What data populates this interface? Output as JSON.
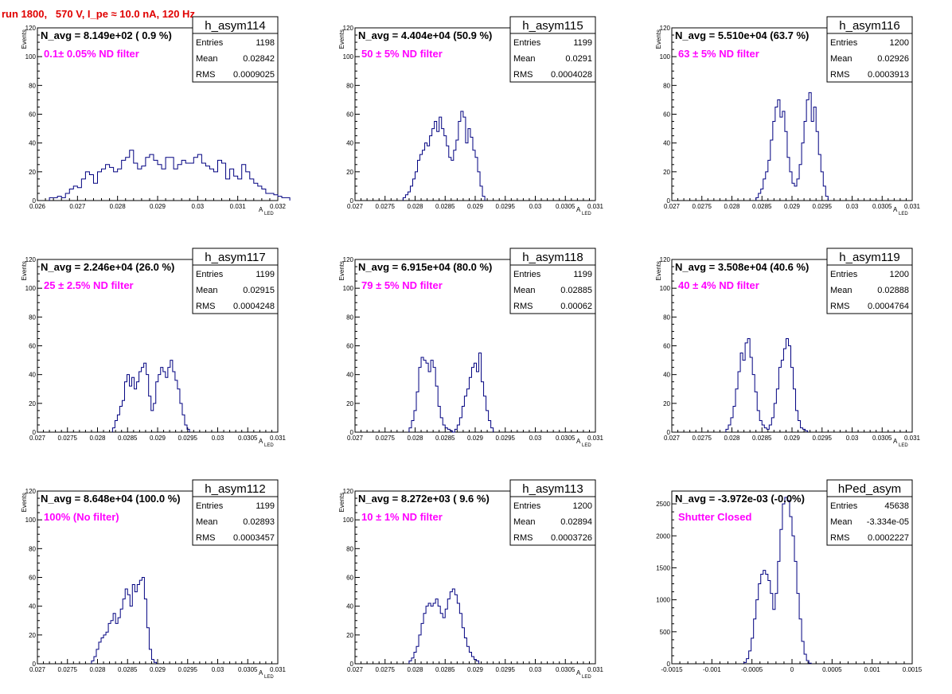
{
  "title": "run 1800,   570 V, I_pe ≈ 10.0 nA, 120 Hz",
  "colors": {
    "title": "#e00000",
    "annotation": "#ff00ff",
    "histogram": "#000080",
    "axis": "#000000"
  },
  "chart_data": [
    {
      "type": "histogram",
      "name": "h_asym114",
      "nlabel": "N_avg = 8.149e+02 ( 0.9 %)",
      "filter": "0.1± 0.05% ND filter",
      "stats": [
        [
          "Entries",
          "1198"
        ],
        [
          "Mean",
          "0.02842"
        ],
        [
          "RMS",
          "0.0009025"
        ]
      ],
      "xlabel": "A",
      "xlabel_sub": "LED",
      "ylabel": "Events",
      "xlim": [
        0.026,
        0.032
      ],
      "ylim": [
        0,
        120
      ],
      "xticks": [
        "0.026",
        "0.027",
        "0.028",
        "0.029",
        "0.03",
        "0.031",
        "0.032"
      ],
      "yticks": [
        "0",
        "20",
        "40",
        "60",
        "80",
        "100",
        "120"
      ],
      "bin_start": 0.0263,
      "bin_width": 0.0001,
      "values": [
        2,
        2,
        3,
        2,
        5,
        8,
        10,
        9,
        15,
        20,
        18,
        12,
        20,
        22,
        25,
        23,
        20,
        22,
        28,
        30,
        35,
        26,
        22,
        24,
        30,
        32,
        28,
        25,
        22,
        30,
        30,
        22,
        25,
        28,
        26,
        26,
        30,
        32,
        26,
        24,
        22,
        20,
        28,
        26,
        15,
        22,
        17,
        15,
        25,
        20,
        15,
        12,
        10,
        8,
        5,
        5,
        4,
        3,
        2,
        2
      ]
    },
    {
      "type": "histogram",
      "name": "h_asym115",
      "nlabel": "N_avg = 4.404e+04 (50.9 %)",
      "filter": "50 ± 5% ND filter",
      "stats": [
        [
          "Entries",
          "1199"
        ],
        [
          "Mean",
          "0.0291"
        ],
        [
          "RMS",
          "0.0004028"
        ]
      ],
      "xlabel": "A",
      "xlabel_sub": "LED",
      "ylabel": "Events",
      "xlim": [
        0.027,
        0.031
      ],
      "ylim": [
        0,
        120
      ],
      "xticks": [
        "0.027",
        "0.0275",
        "0.028",
        "0.0285",
        "0.029",
        "0.0295",
        "0.03",
        "0.0305",
        "0.031"
      ],
      "yticks": [
        "0",
        "20",
        "40",
        "60",
        "80",
        "100",
        "120"
      ],
      "bin_start": 0.0278,
      "bin_width": 4e-05,
      "values": [
        2,
        4,
        6,
        10,
        15,
        20,
        28,
        32,
        35,
        40,
        38,
        45,
        50,
        55,
        48,
        58,
        50,
        45,
        38,
        30,
        28,
        35,
        42,
        55,
        62,
        58,
        40,
        50,
        44,
        35,
        30,
        20,
        10,
        3
      ]
    },
    {
      "type": "histogram",
      "name": "h_asym116",
      "nlabel": "N_avg = 5.510e+04 (63.7 %)",
      "filter": "63 ± 5% ND filter",
      "stats": [
        [
          "Entries",
          "1200"
        ],
        [
          "Mean",
          "0.02926"
        ],
        [
          "RMS",
          "0.0003913"
        ]
      ],
      "xlabel": "A",
      "xlabel_sub": "LED",
      "ylabel": "Events",
      "xlim": [
        0.027,
        0.031
      ],
      "ylim": [
        0,
        120
      ],
      "xticks": [
        "0.027",
        "0.0275",
        "0.028",
        "0.0285",
        "0.029",
        "0.0295",
        "0.03",
        "0.0305",
        "0.031"
      ],
      "yticks": [
        "0",
        "20",
        "40",
        "60",
        "80",
        "100",
        "120"
      ],
      "bin_start": 0.0284,
      "bin_width": 4e-05,
      "values": [
        2,
        5,
        8,
        15,
        20,
        28,
        42,
        55,
        65,
        70,
        58,
        62,
        48,
        30,
        20,
        12,
        10,
        15,
        25,
        40,
        55,
        70,
        75,
        55,
        65,
        48,
        32,
        20,
        10,
        3
      ]
    },
    {
      "type": "histogram",
      "name": "h_asym117",
      "nlabel": "N_avg = 2.246e+04 (26.0 %)",
      "filter": "25 ± 2.5% ND filter",
      "stats": [
        [
          "Entries",
          "1199"
        ],
        [
          "Mean",
          "0.02915"
        ],
        [
          "RMS",
          "0.0004248"
        ]
      ],
      "xlabel": "A",
      "xlabel_sub": "LED",
      "ylabel": "Events",
      "xlim": [
        0.027,
        0.031
      ],
      "ylim": [
        0,
        120
      ],
      "xticks": [
        "0.027",
        "0.0275",
        "0.028",
        "0.0285",
        "0.029",
        "0.0295",
        "0.03",
        "0.0305",
        "0.031"
      ],
      "yticks": [
        "0",
        "20",
        "40",
        "60",
        "80",
        "100",
        "120"
      ],
      "bin_start": 0.02825,
      "bin_width": 4e-05,
      "values": [
        3,
        8,
        12,
        18,
        22,
        35,
        40,
        32,
        38,
        30,
        35,
        42,
        45,
        48,
        40,
        25,
        15,
        20,
        35,
        40,
        45,
        42,
        38,
        45,
        50,
        42,
        36,
        30,
        20,
        12,
        5,
        2
      ]
    },
    {
      "type": "histogram",
      "name": "h_asym118",
      "nlabel": "N_avg = 6.915e+04 (80.0 %)",
      "filter": "79 ± 5% ND filter",
      "stats": [
        [
          "Entries",
          "1199"
        ],
        [
          "Mean",
          "0.02885"
        ],
        [
          "RMS",
          "0.00062"
        ]
      ],
      "xlabel": "A",
      "xlabel_sub": "LED",
      "ylabel": "Events",
      "xlim": [
        0.027,
        0.031
      ],
      "ylim": [
        0,
        120
      ],
      "xticks": [
        "0.027",
        "0.0275",
        "0.028",
        "0.0285",
        "0.029",
        "0.0295",
        "0.03",
        "0.0305",
        "0.031"
      ],
      "yticks": [
        "0",
        "20",
        "40",
        "60",
        "80",
        "100",
        "120"
      ],
      "bin_start": 0.0279,
      "bin_width": 4e-05,
      "values": [
        3,
        8,
        15,
        28,
        45,
        52,
        50,
        48,
        42,
        50,
        45,
        32,
        18,
        10,
        5,
        3,
        2,
        1,
        0,
        2,
        5,
        10,
        18,
        25,
        30,
        38,
        45,
        48,
        42,
        55,
        35,
        25,
        15,
        8,
        3
      ]
    },
    {
      "type": "histogram",
      "name": "h_asym119",
      "nlabel": "N_avg = 3.508e+04 (40.6 %)",
      "filter": "40 ± 4% ND filter",
      "stats": [
        [
          "Entries",
          "1200"
        ],
        [
          "Mean",
          "0.02888"
        ],
        [
          "RMS",
          "0.0004764"
        ]
      ],
      "xlabel": "A",
      "xlabel_sub": "LED",
      "ylabel": "Events",
      "xlim": [
        0.027,
        0.031
      ],
      "ylim": [
        0,
        120
      ],
      "xticks": [
        "0.027",
        "0.0275",
        "0.028",
        "0.0285",
        "0.029",
        "0.0295",
        "0.03",
        "0.0305",
        "0.031"
      ],
      "yticks": [
        "0",
        "20",
        "40",
        "60",
        "80",
        "100",
        "120"
      ],
      "bin_start": 0.0279,
      "bin_width": 4e-05,
      "values": [
        2,
        5,
        10,
        18,
        30,
        42,
        55,
        50,
        62,
        65,
        52,
        40,
        28,
        15,
        8,
        5,
        3,
        2,
        5,
        10,
        20,
        30,
        45,
        50,
        58,
        65,
        60,
        45,
        30,
        15,
        8,
        3,
        2,
        1
      ]
    },
    {
      "type": "histogram",
      "name": "h_asym112",
      "nlabel": "N_avg = 8.648e+04 (100.0 %)",
      "filter": "100% (No filter)",
      "stats": [
        [
          "Entries",
          "1199"
        ],
        [
          "Mean",
          "0.02893"
        ],
        [
          "RMS",
          "0.0003457"
        ]
      ],
      "xlabel": "A",
      "xlabel_sub": "LED",
      "ylabel": "Events",
      "xlim": [
        0.027,
        0.031
      ],
      "ylim": [
        0,
        120
      ],
      "xticks": [
        "0.027",
        "0.0275",
        "0.028",
        "0.0285",
        "0.029",
        "0.0295",
        "0.03",
        "0.0305",
        "0.031"
      ],
      "yticks": [
        "0",
        "20",
        "40",
        "60",
        "80",
        "100",
        "120"
      ],
      "bin_start": 0.0279,
      "bin_width": 4e-05,
      "values": [
        2,
        5,
        10,
        15,
        18,
        20,
        22,
        28,
        30,
        35,
        28,
        32,
        38,
        45,
        52,
        48,
        40,
        55,
        50,
        55,
        58,
        60,
        45,
        25,
        10,
        3,
        1
      ]
    },
    {
      "type": "histogram",
      "name": "h_asym113",
      "nlabel": "N_avg = 8.272e+03 ( 9.6 %)",
      "filter": "10 ± 1% ND filter",
      "stats": [
        [
          "Entries",
          "1200"
        ],
        [
          "Mean",
          "0.02894"
        ],
        [
          "RMS",
          "0.0003726"
        ]
      ],
      "xlabel": "A",
      "xlabel_sub": "LED",
      "ylabel": "Events",
      "xlim": [
        0.027,
        0.031
      ],
      "ylim": [
        0,
        120
      ],
      "xticks": [
        "0.027",
        "0.0275",
        "0.028",
        "0.0285",
        "0.029",
        "0.0295",
        "0.03",
        "0.0305",
        "0.031"
      ],
      "yticks": [
        "0",
        "20",
        "40",
        "60",
        "80",
        "100",
        "120"
      ],
      "bin_start": 0.0279,
      "bin_width": 4e-05,
      "values": [
        2,
        4,
        8,
        12,
        20,
        28,
        35,
        40,
        42,
        40,
        42,
        45,
        40,
        35,
        32,
        38,
        45,
        50,
        52,
        48,
        42,
        35,
        25,
        18,
        12,
        8,
        5,
        3,
        2
      ]
    },
    {
      "type": "histogram",
      "name": "hPed_asym",
      "nlabel": "N_avg = -3.972e-03 (-0.0%)",
      "filter": "Shutter Closed",
      "stats": [
        [
          "Entries",
          "45638"
        ],
        [
          "Mean",
          "-3.334e-05"
        ],
        [
          "RMS",
          "0.0002227"
        ]
      ],
      "xlabel": "",
      "xlabel_sub": "",
      "ylabel": "",
      "xlim": [
        -0.0015,
        0.0015
      ],
      "ylim": [
        0,
        2700
      ],
      "xticks": [
        "-0.0015",
        "-0.001",
        "-0.0005",
        "0",
        "0.0005",
        "0.001",
        "0.0015"
      ],
      "yticks": [
        "0",
        "500",
        "1000",
        "1500",
        "2000",
        "2500"
      ],
      "bin_start": -0.0006,
      "bin_width": 3e-05,
      "values": [
        20,
        80,
        200,
        400,
        700,
        1000,
        1250,
        1400,
        1460,
        1400,
        1300,
        1100,
        850,
        1100,
        1600,
        2100,
        2500,
        2600,
        2550,
        2300,
        2000,
        1600,
        1100,
        700,
        350,
        150,
        50,
        10
      ]
    }
  ]
}
